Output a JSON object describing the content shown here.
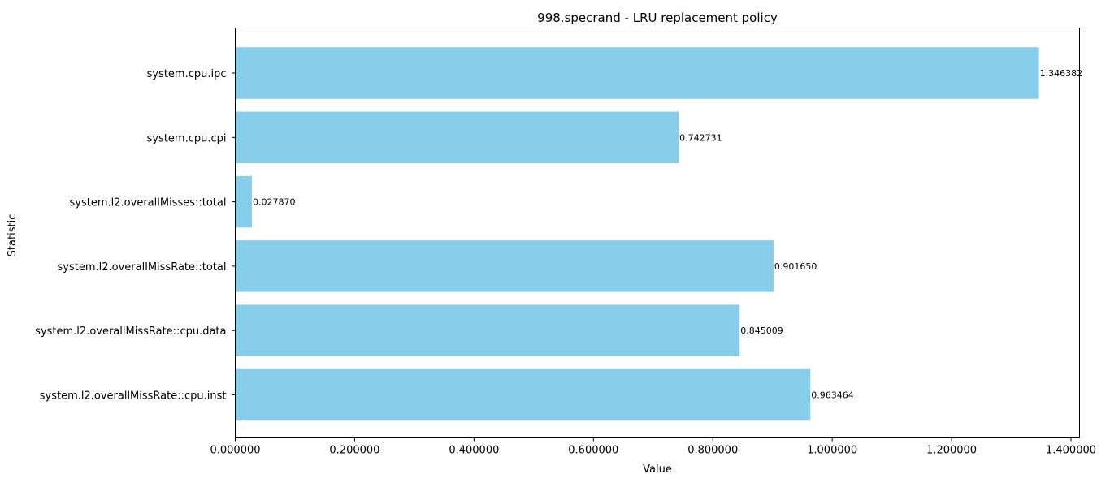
{
  "chart_data": {
    "type": "bar",
    "orientation": "horizontal",
    "title": "998.specrand - LRU replacement policy",
    "xlabel": "Value",
    "ylabel": "Statistic",
    "categories": [
      "system.cpu.ipc",
      "system.cpu.cpi",
      "system.l2.overallMisses::total",
      "system.l2.overallMissRate::total",
      "system.l2.overallMissRate::cpu.data",
      "system.l2.overallMissRate::cpu.inst"
    ],
    "values": [
      1.346382,
      0.742731,
      0.02787,
      0.90165,
      0.845009,
      0.963464
    ],
    "value_labels": [
      "1.346382",
      "0.742731",
      "0.027870",
      "0.901650",
      "0.845009",
      "0.963464"
    ],
    "xlim": [
      0,
      1.4
    ],
    "xticks": [
      0,
      0.2,
      0.4,
      0.6,
      0.8,
      1.0,
      1.2,
      1.4
    ],
    "xtick_labels": [
      "0.000000",
      "0.200000",
      "0.400000",
      "0.600000",
      "0.800000",
      "1.000000",
      "1.200000",
      "1.400000"
    ],
    "grid": false,
    "legend": "none",
    "bar_color": "#87ceeb"
  }
}
